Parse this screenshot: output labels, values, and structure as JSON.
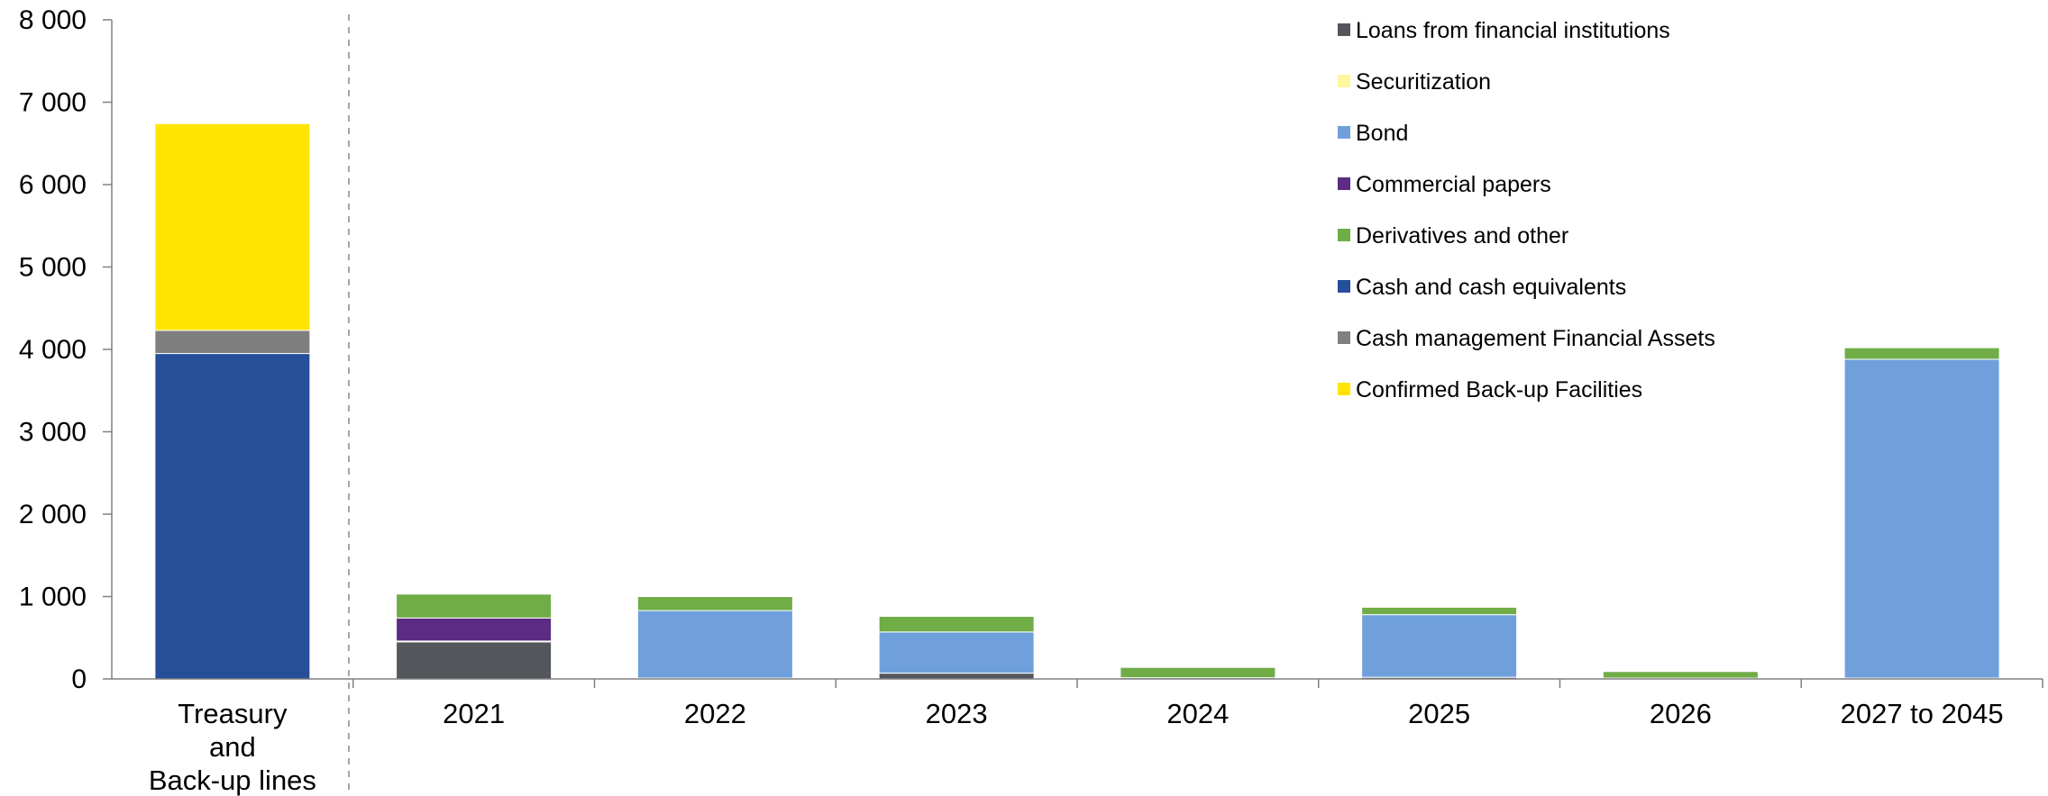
{
  "chart_data": {
    "type": "bar",
    "stacked": true,
    "ylim": [
      0,
      8000
    ],
    "yticks": [
      0,
      1000,
      2000,
      3000,
      4000,
      5000,
      6000,
      7000,
      8000
    ],
    "ytick_labels": [
      "0",
      "1 000",
      "2 000",
      "3 000",
      "4 000",
      "5 000",
      "6 000",
      "7 000",
      "8 000"
    ],
    "grid": false,
    "legend_position": "top-right",
    "categories": [
      [
        "Treasury",
        "and",
        "Back-up lines"
      ],
      [
        "2021"
      ],
      [
        "2022"
      ],
      [
        "2023"
      ],
      [
        "2024"
      ],
      [
        "2025"
      ],
      [
        "2026"
      ],
      [
        "2027 to 2045"
      ]
    ],
    "series": [
      {
        "name": "Cash and cash equivalents",
        "color": "#254F99",
        "values": [
          3950,
          0,
          0,
          0,
          0,
          0,
          0,
          0
        ]
      },
      {
        "name": "Cash management Financial Assets",
        "color": "#7F7F7F",
        "values": [
          280,
          0,
          0,
          0,
          0,
          0,
          0,
          0
        ]
      },
      {
        "name": "Confirmed Back-up Facilities",
        "color": "#FFE500",
        "values": [
          2510,
          0,
          0,
          0,
          0,
          0,
          0,
          0
        ]
      },
      {
        "name": "Loans from financial institutions",
        "color": "#53565A",
        "values": [
          0,
          450,
          10,
          70,
          15,
          20,
          10,
          10
        ]
      },
      {
        "name": "Securitization",
        "color": "#FFF59D",
        "values": [
          0,
          0,
          0,
          0,
          0,
          0,
          0,
          0
        ]
      },
      {
        "name": "Bond",
        "color": "#6FA0DC",
        "values": [
          0,
          10,
          820,
          500,
          0,
          760,
          0,
          3870
        ]
      },
      {
        "name": "Commercial papers",
        "color": "#5B2C83",
        "values": [
          0,
          280,
          0,
          0,
          0,
          0,
          0,
          0
        ]
      },
      {
        "name": "Derivatives and other",
        "color": "#70AD47",
        "values": [
          0,
          290,
          170,
          190,
          125,
          90,
          80,
          140
        ]
      }
    ],
    "legend_order": [
      "Loans from financial institutions",
      "Securitization",
      "Bond",
      "Commercial papers",
      "Derivatives and other",
      "Cash and cash equivalents",
      "Cash management Financial Assets",
      "Confirmed Back-up Facilities"
    ]
  }
}
